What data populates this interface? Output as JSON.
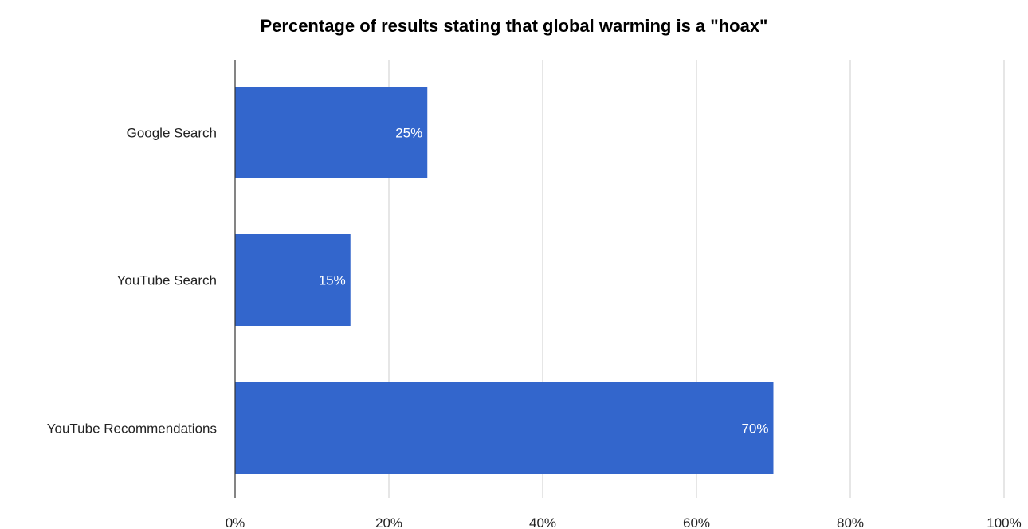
{
  "chart_data": {
    "type": "bar",
    "orientation": "horizontal",
    "title": "Percentage of results stating that global warming is a \"hoax\"",
    "categories": [
      "Google Search",
      "YouTube Search",
      "YouTube Recommendations"
    ],
    "values": [
      25,
      15,
      70
    ],
    "data_labels": [
      "25%",
      "15%",
      "70%"
    ],
    "x_ticks": [
      0,
      20,
      40,
      60,
      80,
      100
    ],
    "x_tick_labels": [
      "0%",
      "20%",
      "40%",
      "60%",
      "80%",
      "100%"
    ],
    "xlim": [
      0,
      100
    ],
    "xlabel": "",
    "ylabel": "",
    "grid": true,
    "legend": "none",
    "bar_color": "#3366cc",
    "grid_color": "#cccccc",
    "axis_color": "#333333",
    "label_color": "#222222",
    "data_label_color": "#ffffff"
  }
}
